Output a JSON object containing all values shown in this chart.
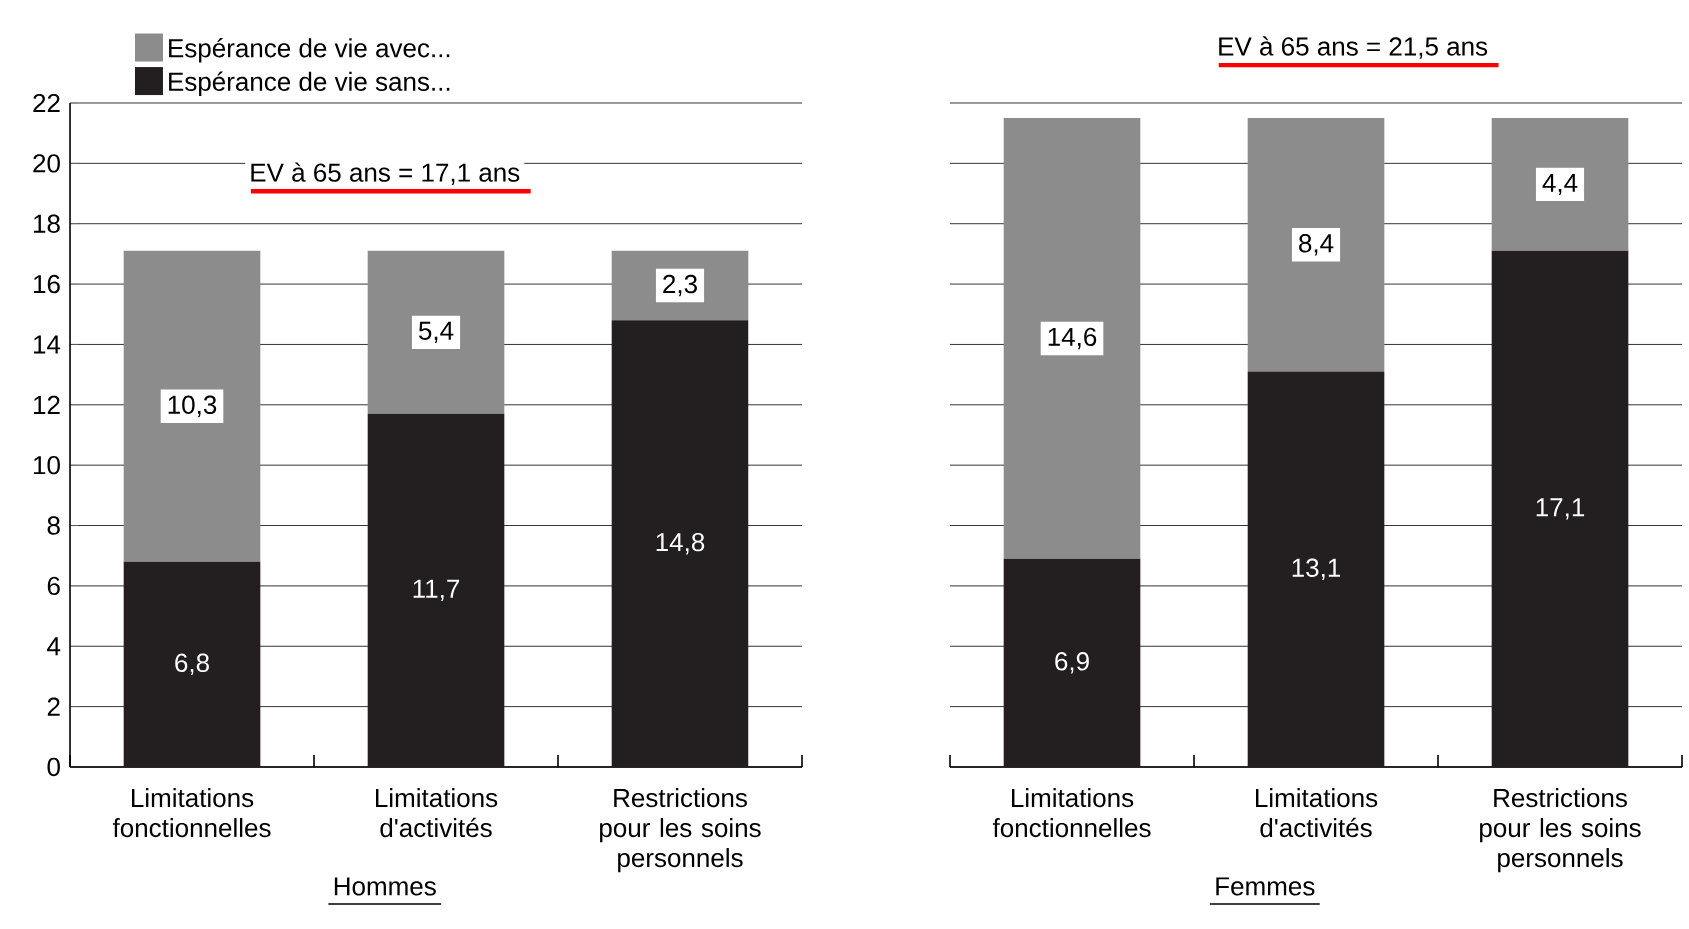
{
  "chart_data": [
    {
      "type": "bar",
      "stacked": true,
      "xlabel": "Hommes",
      "categories": [
        "Limitations fonctionnelles",
        "Limitations d'activités",
        "Restrictions pour les soins personnels"
      ],
      "series": [
        {
          "name": "Espérance de vie sans...",
          "color": "#231f20",
          "values": [
            6.8,
            11.7,
            14.8
          ],
          "value_labels": [
            "6,8",
            "11,7",
            "14,8"
          ]
        },
        {
          "name": "Espérance de vie avec...",
          "color": "#8c8c8c",
          "values": [
            10.3,
            5.4,
            2.3
          ],
          "value_labels": [
            "10,3",
            "5,4",
            "2,3"
          ]
        }
      ],
      "ylim": [
        0,
        22
      ],
      "yticks": [
        0,
        2,
        4,
        6,
        8,
        10,
        12,
        14,
        16,
        18,
        20,
        22
      ],
      "grid": "y",
      "legend": "top left",
      "annotations": [
        "EV à 65 ans = 17,1 ans"
      ]
    },
    {
      "type": "bar",
      "stacked": true,
      "xlabel": "Femmes",
      "categories": [
        "Limitations fonctionnelles",
        "Limitations d'activités",
        "Restrictions pour les soins personnels"
      ],
      "series": [
        {
          "color": "#231f20",
          "values": [
            6.9,
            13.1,
            17.1
          ],
          "value_labels": [
            "6,9",
            "13,1",
            "17,1"
          ]
        },
        {
          "color": "#8c8c8c",
          "values": [
            14.6,
            8.4,
            4.4
          ],
          "value_labels": [
            "14,6",
            "8,4",
            "4,4"
          ]
        }
      ],
      "ylim": [
        0,
        22
      ],
      "yticks": [
        0,
        2,
        4,
        6,
        8,
        10,
        12,
        14,
        16,
        18,
        20,
        22
      ],
      "grid": "y",
      "legend": false,
      "tick_labels": "x",
      "annotations": [
        "EV à 65 ans = 21,5 ans"
      ]
    }
  ]
}
